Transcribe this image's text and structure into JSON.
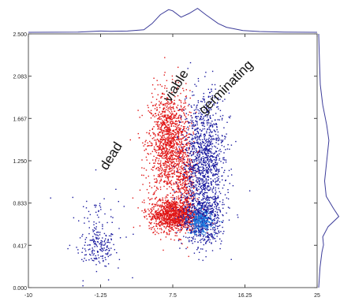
{
  "chart_data": {
    "type": "scatter",
    "title": "",
    "xlabel": "",
    "ylabel": "",
    "xlim": [
      -10,
      25
    ],
    "ylim": [
      0,
      2.5
    ],
    "x_ticks": [
      -10,
      -1.25,
      7.5,
      16.25,
      25
    ],
    "x_tick_labels": [
      "-10",
      "-1.25",
      "7.5",
      "16.25",
      "25"
    ],
    "y_ticks": [
      0.0,
      0.417,
      0.833,
      1.25,
      1.667,
      2.083,
      2.5
    ],
    "y_tick_labels": [
      "0.000",
      "0.417",
      "0.833",
      "1.250",
      "1.667",
      "2.083",
      "2.500"
    ],
    "grid": false,
    "legend": "none",
    "series_colors": {
      "dead": "#1a1a9e",
      "viable": "#e01515",
      "germinating": "#1a1a9e",
      "overlap": "#1f7fe0"
    },
    "clusters": [
      {
        "name": "dead",
        "center": [
          -1.5,
          0.4
        ],
        "spread": [
          1.0,
          0.09
        ],
        "count": 140,
        "color": "#1a1a9e"
      },
      {
        "name": "dead",
        "center": [
          -1.8,
          0.6
        ],
        "spread": [
          1.6,
          0.25
        ],
        "count": 90,
        "color": "#1a1a9e"
      },
      {
        "name": "viable",
        "center": [
          7.0,
          1.42
        ],
        "spread": [
          1.25,
          0.26
        ],
        "count": 1300,
        "color": "#e01515"
      },
      {
        "name": "viable",
        "center": [
          7.5,
          0.72
        ],
        "spread": [
          1.45,
          0.08
        ],
        "count": 1100,
        "color": "#e01515"
      },
      {
        "name": "viable",
        "center": [
          9.0,
          1.0
        ],
        "spread": [
          0.6,
          0.22
        ],
        "count": 300,
        "color": "#e01515"
      },
      {
        "name": "germinating",
        "center": [
          11.2,
          1.25
        ],
        "spread": [
          1.3,
          0.32
        ],
        "count": 1200,
        "color": "#1a1a9e"
      },
      {
        "name": "germinating",
        "center": [
          11.0,
          0.68
        ],
        "spread": [
          1.2,
          0.12
        ],
        "count": 600,
        "color": "#1a1a9e"
      },
      {
        "name": "germinating",
        "center": [
          10.8,
          0.65
        ],
        "spread": [
          0.7,
          0.06
        ],
        "count": 220,
        "color": "#1f7fe0"
      }
    ],
    "annotations": [
      {
        "text": "dead",
        "x": -0.5,
        "y": 1.15,
        "rotation": -58
      },
      {
        "text": "viable",
        "x": 7.2,
        "y": 1.82,
        "rotation": -58
      },
      {
        "text": "germinating",
        "x": 11.3,
        "y": 1.7,
        "rotation": -45
      }
    ],
    "marginal_x": [
      [
        -10,
        0
      ],
      [
        -4,
        0.01
      ],
      [
        -2,
        0.04
      ],
      [
        -1.25,
        0.05
      ],
      [
        0,
        0.04
      ],
      [
        2,
        0.05
      ],
      [
        4,
        0.1
      ],
      [
        5,
        0.35
      ],
      [
        6,
        0.7
      ],
      [
        7,
        0.9
      ],
      [
        7.5,
        0.85
      ],
      [
        8.5,
        0.6
      ],
      [
        9.5,
        0.75
      ],
      [
        10.5,
        0.95
      ],
      [
        11.5,
        0.7
      ],
      [
        13,
        0.35
      ],
      [
        14,
        0.2
      ],
      [
        16,
        0.07
      ],
      [
        18,
        0.03
      ],
      [
        21,
        0.01
      ],
      [
        25,
        0
      ]
    ],
    "marginal_y": [
      [
        0,
        0
      ],
      [
        0.2,
        0.05
      ],
      [
        0.35,
        0.12
      ],
      [
        0.42,
        0.18
      ],
      [
        0.5,
        0.15
      ],
      [
        0.6,
        0.35
      ],
      [
        0.7,
        0.75
      ],
      [
        0.78,
        0.55
      ],
      [
        0.9,
        0.28
      ],
      [
        1.05,
        0.22
      ],
      [
        1.25,
        0.3
      ],
      [
        1.45,
        0.38
      ],
      [
        1.6,
        0.3
      ],
      [
        1.8,
        0.15
      ],
      [
        2.0,
        0.06
      ],
      [
        2.3,
        0.02
      ],
      [
        2.5,
        0
      ]
    ]
  }
}
